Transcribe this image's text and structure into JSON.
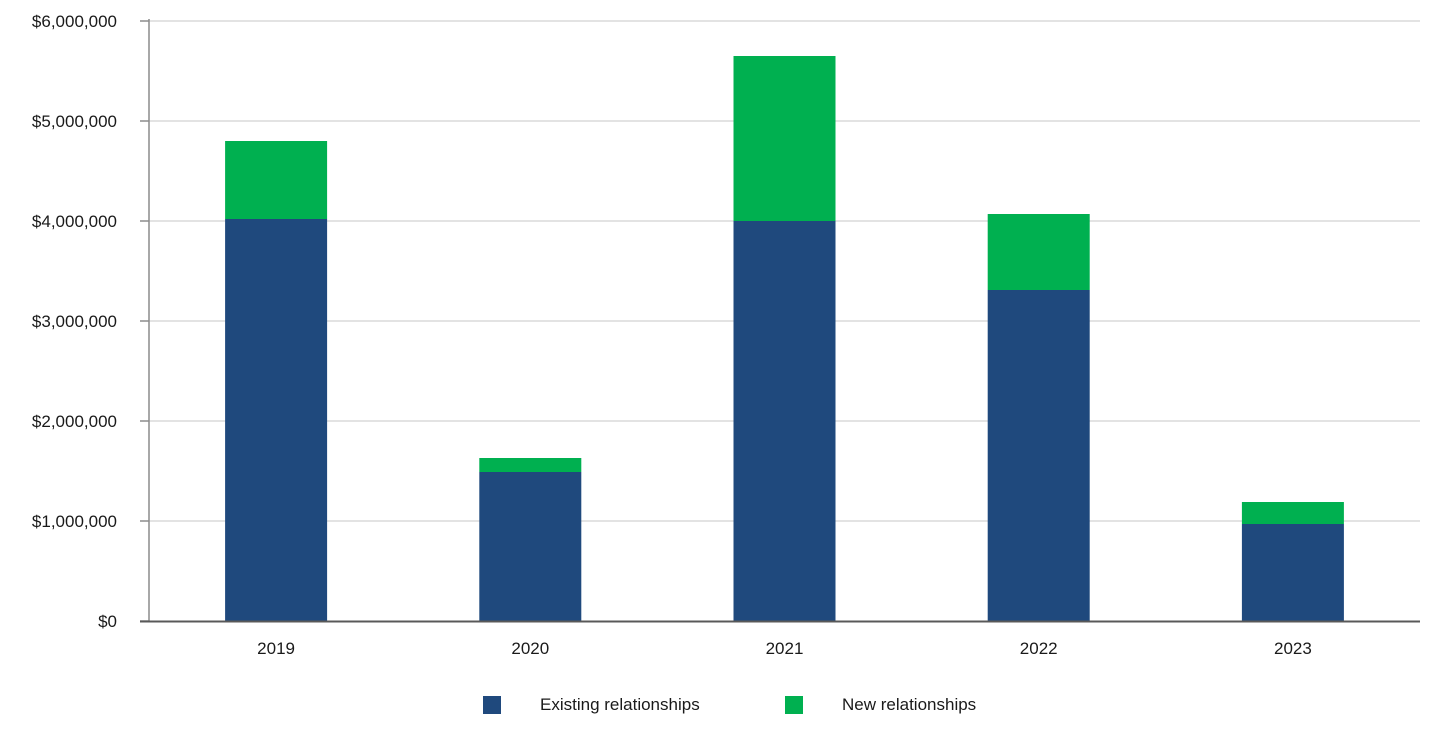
{
  "chart_data": {
    "type": "bar",
    "stacked": true,
    "title": "",
    "xlabel": "",
    "ylabel": "",
    "categories": [
      "2019",
      "2020",
      "2021",
      "2022",
      "2023"
    ],
    "series": [
      {
        "name": "Existing relationships",
        "color": "#1f497d",
        "values": [
          4020000,
          1490000,
          4000000,
          3310000,
          970000
        ]
      },
      {
        "name": "New relationships",
        "color": "#00b050",
        "values": [
          780000,
          140000,
          1650000,
          760000,
          220000
        ]
      }
    ],
    "ylim": [
      0,
      6000000
    ],
    "yticks": [
      0,
      1000000,
      2000000,
      3000000,
      4000000,
      5000000,
      6000000
    ],
    "ytick_labels": [
      "$0",
      "$1,000,000",
      "$2,000,000",
      "$3,000,000",
      "$4,000,000",
      "$5,000,000",
      "$6,000,000"
    ],
    "grid": true,
    "legend_position": "bottom-center"
  }
}
